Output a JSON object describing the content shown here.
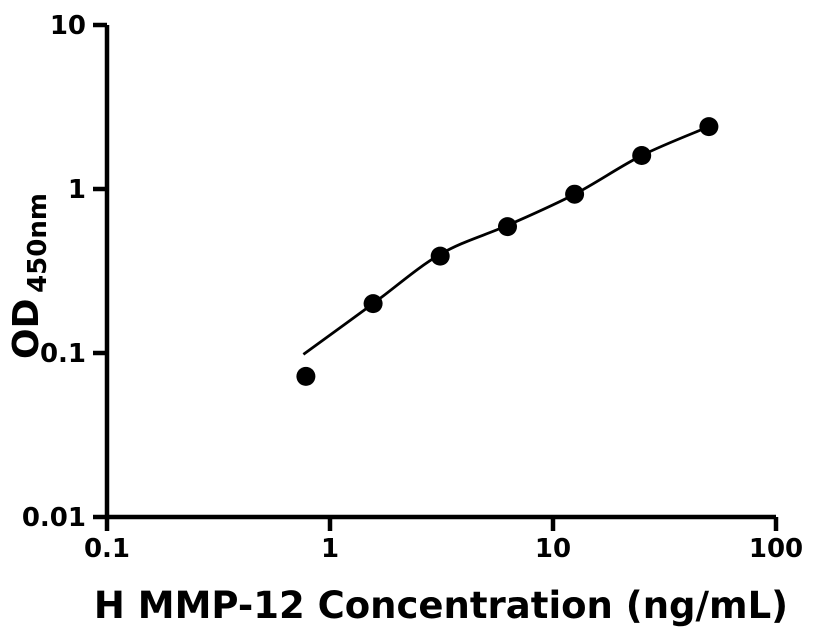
{
  "chart": {
    "x_axis": {
      "title": "H MMP-12 Concentration (ng/mL)",
      "ticks": [
        "0.1",
        "1",
        "10",
        "100"
      ]
    },
    "y_axis": {
      "title_main": "OD",
      "title_sub": "450nm",
      "ticks": [
        "10",
        "1",
        "0.1",
        "0.01"
      ]
    }
  },
  "chart_data": {
    "type": "scatter",
    "title": "",
    "xlabel": "H MMP-12 Concentration (ng/mL)",
    "ylabel": "OD450nm",
    "x_scale": "log",
    "y_scale": "log",
    "xlim": [
      0.1,
      100
    ],
    "ylim": [
      0.01,
      10
    ],
    "x_tick_values": [
      0.1,
      1,
      10,
      100
    ],
    "y_tick_values": [
      10,
      1,
      0.1,
      0.01
    ],
    "grid": false,
    "legend": false,
    "marker": "filled-circle",
    "points": [
      {
        "x": 0.78,
        "y": 0.072
      },
      {
        "x": 1.56,
        "y": 0.2
      },
      {
        "x": 3.12,
        "y": 0.39
      },
      {
        "x": 6.25,
        "y": 0.59
      },
      {
        "x": 12.5,
        "y": 0.93
      },
      {
        "x": 25,
        "y": 1.6
      },
      {
        "x": 50,
        "y": 2.4
      }
    ],
    "fit_curve": [
      {
        "x": 0.76,
        "y": 0.098
      },
      {
        "x": 1.56,
        "y": 0.2
      },
      {
        "x": 3.12,
        "y": 0.4
      },
      {
        "x": 6.25,
        "y": 0.6
      },
      {
        "x": 12.5,
        "y": 0.93
      },
      {
        "x": 25,
        "y": 1.6
      },
      {
        "x": 50,
        "y": 2.4
      }
    ],
    "colors": {
      "point": "#000000",
      "curve": "#000000",
      "axis": "#000000",
      "background": "#ffffff"
    }
  }
}
